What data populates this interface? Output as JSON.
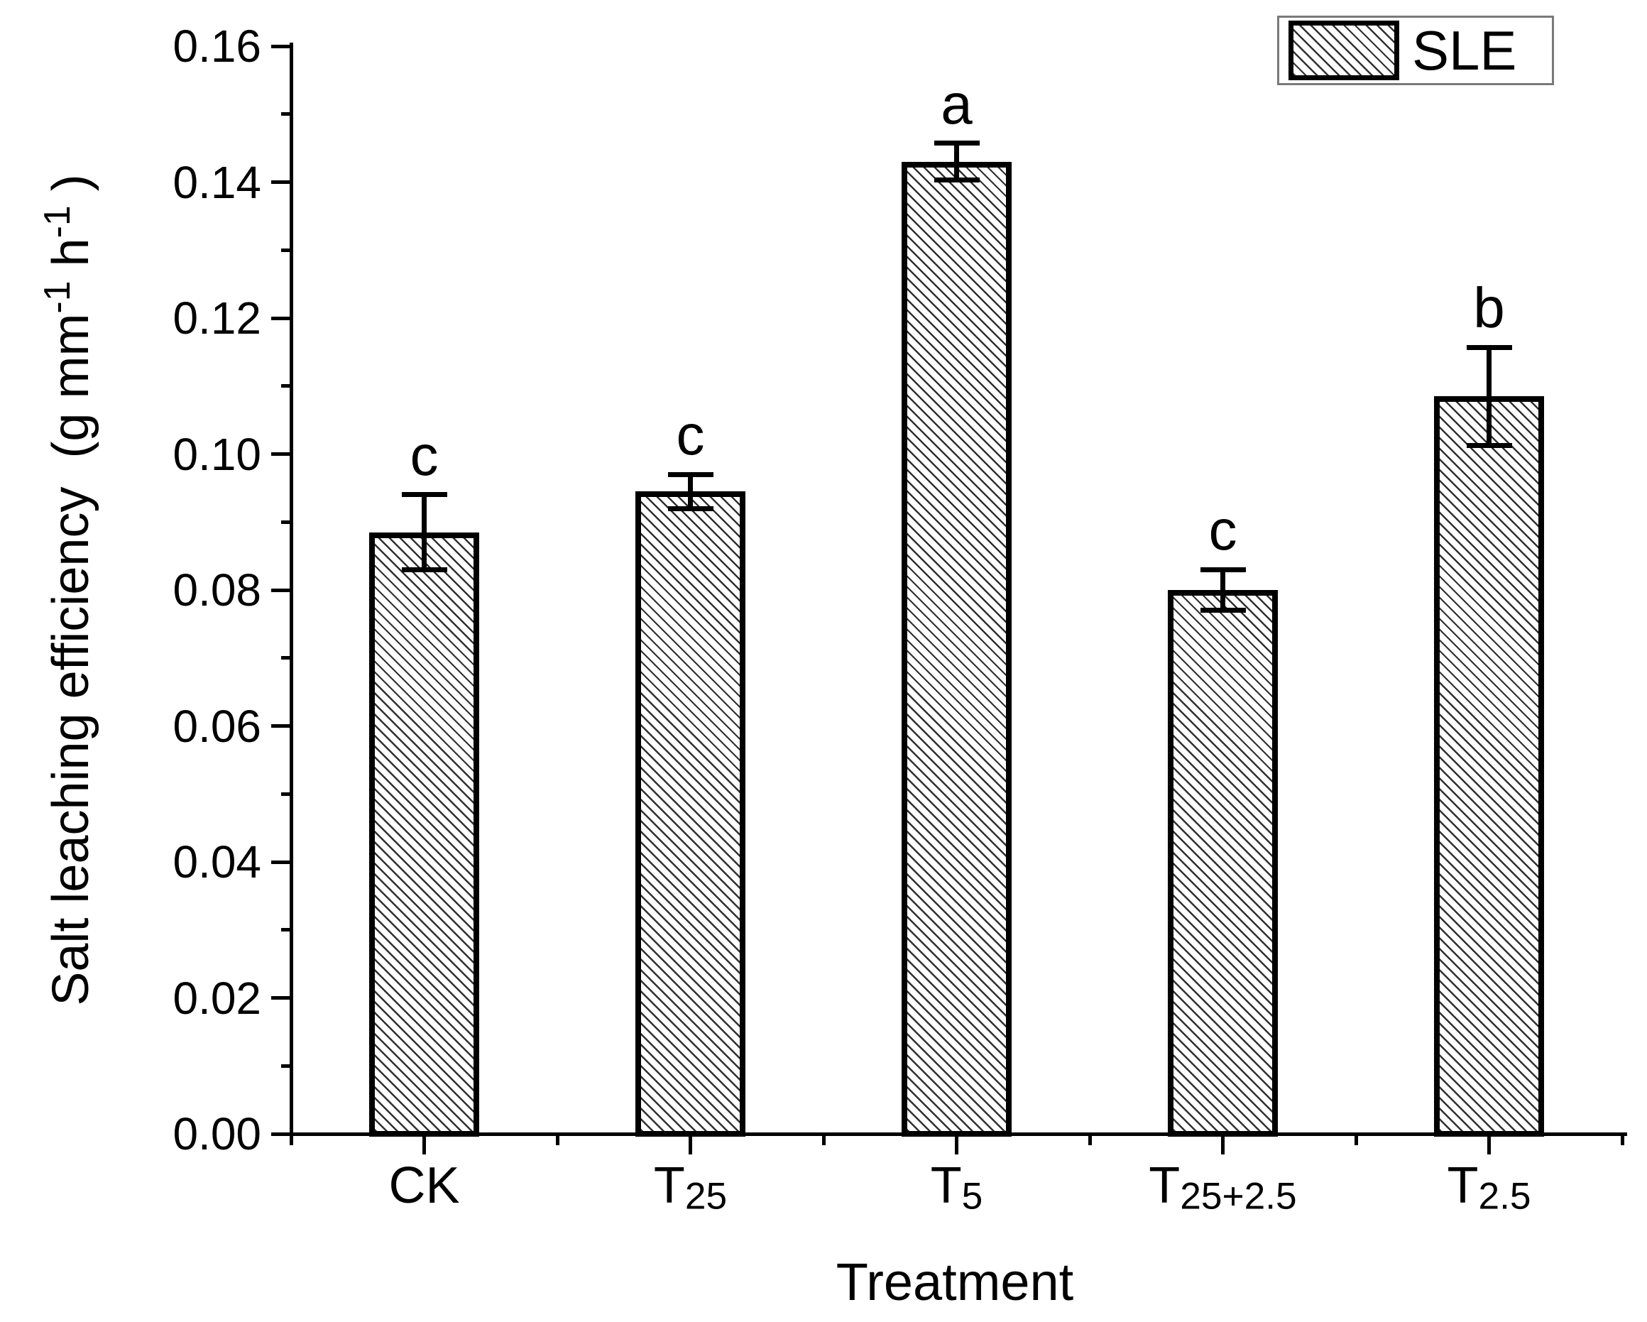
{
  "chart_data": {
    "type": "bar",
    "title": "",
    "xlabel": "Treatment",
    "ylabel": "Salt leaching efficiency (g mm⁻¹ h⁻¹)",
    "ylabel_rich": [
      [
        "t",
        "Salt leaching efficiency  (g mm"
      ],
      [
        "sup",
        "-1"
      ],
      [
        "t",
        " h"
      ],
      [
        "sup",
        "-1"
      ],
      [
        "t",
        " )"
      ]
    ],
    "categories": [
      "CK",
      "T25",
      "T5",
      "T25+2.5",
      "T2.5"
    ],
    "categories_rich": [
      [
        [
          "t",
          "CK"
        ]
      ],
      [
        [
          "t",
          "T"
        ],
        [
          "sub",
          "25"
        ]
      ],
      [
        [
          "t",
          "T"
        ],
        [
          "sub",
          "5"
        ]
      ],
      [
        [
          "t",
          "T"
        ],
        [
          "sub",
          "25+2.5"
        ]
      ],
      [
        [
          "t",
          "T"
        ],
        [
          "sub",
          "2.5"
        ]
      ]
    ],
    "series": [
      {
        "name": "SLE",
        "values": [
          0.0885,
          0.0945,
          0.143,
          0.08,
          0.1085
        ],
        "errors": [
          0.0055,
          0.0025,
          0.0027,
          0.003,
          0.0072
        ],
        "sig_letters": [
          "c",
          "c",
          "a",
          "c",
          "b"
        ]
      }
    ],
    "ylim": [
      0,
      0.16
    ],
    "ytick_step": 0.02,
    "minor_ytick_step": 0.01,
    "ytick_labels": [
      "0.00",
      "0.02",
      "0.04",
      "0.06",
      "0.08",
      "0.10",
      "0.12",
      "0.14",
      "0.16"
    ],
    "grid": false,
    "legend": {
      "label": "SLE",
      "position": "top-right",
      "hatch": "backslash-diagonal"
    },
    "bar_style": {
      "fill": "#ffffff",
      "hatch": "backslash-diagonal",
      "edge_color": "#000000"
    }
  },
  "colors": {
    "axis": "#000000",
    "text": "#000000",
    "hatch_line": "#141414",
    "legend_border": "#7a7a7a",
    "background": "#ffffff"
  }
}
